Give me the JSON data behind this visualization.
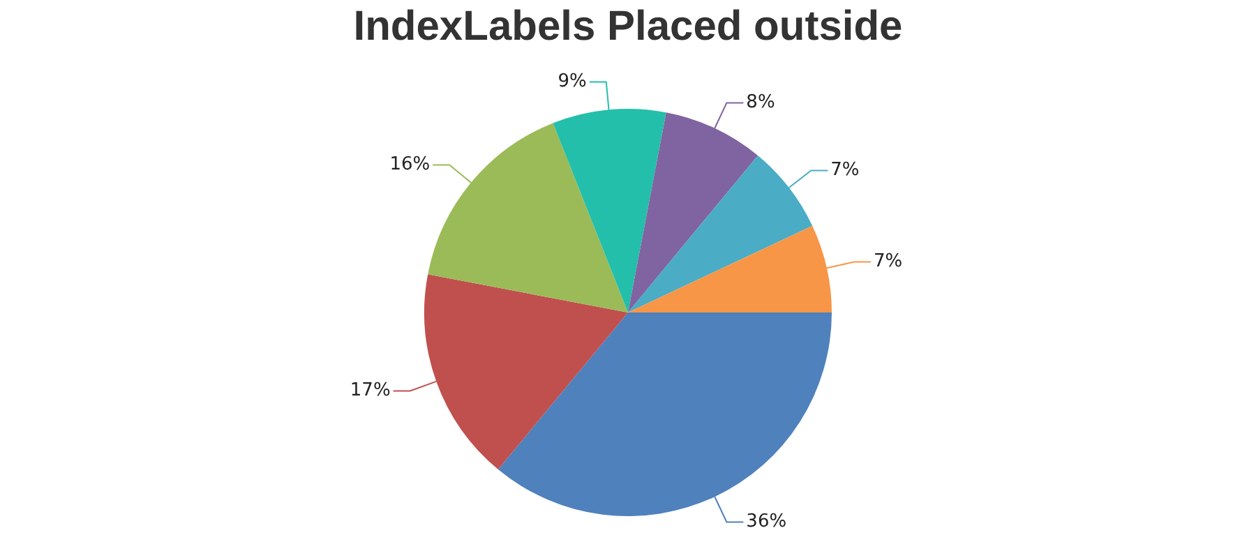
{
  "chart_data": {
    "type": "pie",
    "title": "IndexLabels Placed outside",
    "categories": [
      null,
      null,
      null,
      null,
      null,
      null,
      null
    ],
    "values": [
      36,
      17,
      16,
      9,
      8,
      7,
      7
    ],
    "colors": [
      "#4f81bc",
      "#c0504e",
      "#9bbb58",
      "#23bfaa",
      "#8064a1",
      "#4aacc5",
      "#f79647"
    ],
    "value_labels": [
      "36%",
      "17%",
      "16%",
      "9%",
      "8%",
      "7%",
      "7%"
    ],
    "legend": false
  }
}
